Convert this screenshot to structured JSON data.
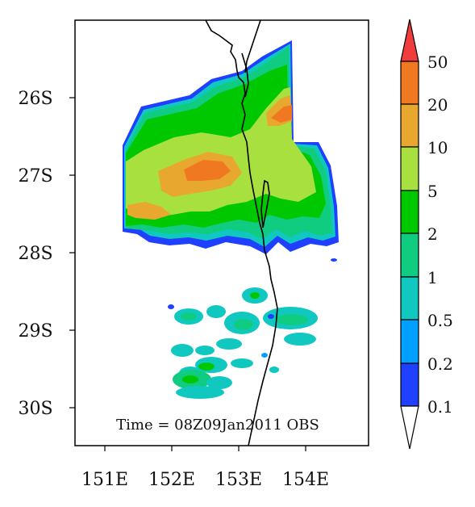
{
  "map": {
    "annotation": "Time = 08Z09Jan2011 OBS",
    "lat_ticks": [
      "26S",
      "27S",
      "28S",
      "29S",
      "30S"
    ],
    "lon_ticks": [
      "151E",
      "152E",
      "153E",
      "154E"
    ],
    "lat_range": [
      "25S",
      "30.5S"
    ],
    "lon_range": [
      "150.5E",
      "155E"
    ],
    "coastline_color": "#000000"
  },
  "colorbar": {
    "labels": [
      "0.1",
      "0.2",
      "0.5",
      "1",
      "2",
      "5",
      "10",
      "20",
      "50"
    ],
    "colors": [
      "#ffffff",
      "#2040ff",
      "#00a0ff",
      "#10c8c0",
      "#10cc80",
      "#00c800",
      "#a8e040",
      "#e8a830",
      "#f07820",
      "#f03c3c"
    ]
  },
  "legend_colors": {
    "c_0_1": "#2040ff",
    "c_0_2": "#00a0ff",
    "c_0_5": "#10c8c0",
    "c_1": "#10cc80",
    "c_2": "#00c800",
    "c_5": "#a8e040",
    "c_10": "#e8a830",
    "c_20": "#f07820"
  }
}
